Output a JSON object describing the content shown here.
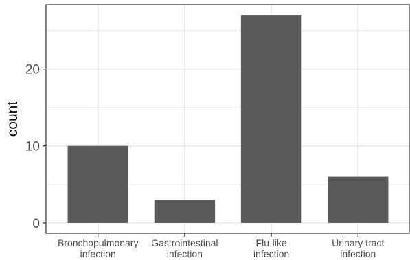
{
  "chart_data": {
    "type": "bar",
    "categories": [
      [
        "Bronchopulmonary",
        "infection"
      ],
      [
        "Gastrointestinal",
        "infection"
      ],
      [
        "Flu-like",
        "infection"
      ],
      [
        "Urinary tract",
        "infection"
      ]
    ],
    "values": [
      10,
      3,
      27,
      6
    ],
    "title": "",
    "xlabel": "",
    "ylabel": "count",
    "ylim": [
      -1.35,
      28.35
    ],
    "yticks": [
      0,
      10,
      20
    ],
    "minor_yticks": [
      5,
      15,
      25
    ],
    "grid": true,
    "theme": "bw",
    "colors": {
      "bar": "#595959",
      "grid": "#ebebeb",
      "panel_border": "#333333",
      "tick_text": "#4d4d4d",
      "axis_title": "#000000"
    }
  }
}
